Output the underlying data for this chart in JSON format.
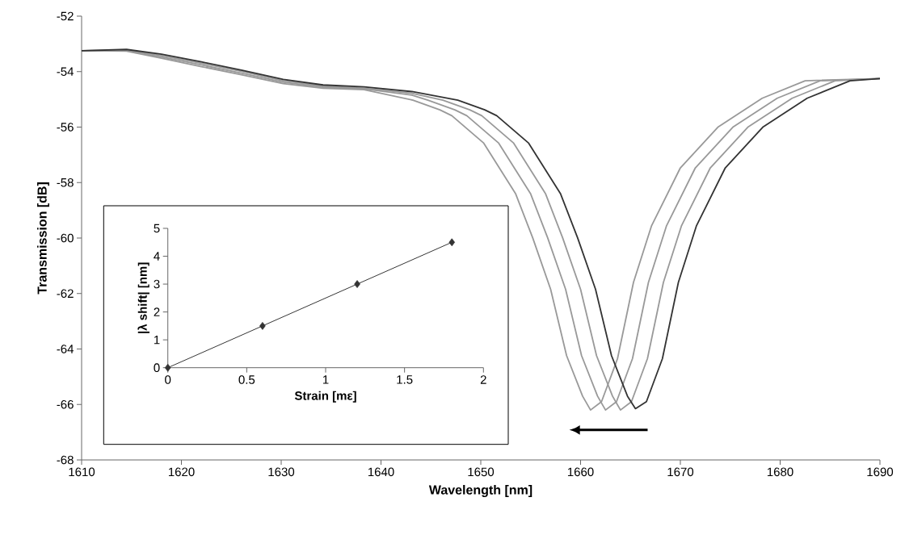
{
  "chart_data": [
    {
      "type": "line",
      "xlabel": "Wavelength [nm]",
      "ylabel": "Transmission [dB]",
      "xlim": [
        1610,
        1690
      ],
      "ylim": [
        -68,
        -52
      ],
      "xticks": [
        1610,
        1620,
        1630,
        1640,
        1650,
        1660,
        1670,
        1680,
        1690
      ],
      "yticks": [
        -68,
        -66,
        -64,
        -62,
        -60,
        -58,
        -56,
        -54,
        -52
      ],
      "series": [
        {
          "color": "#999999",
          "x": [
            1610,
            1614.5,
            1618,
            1622,
            1626.1,
            1630.2,
            1634.2,
            1638.3,
            1643.2,
            1645.9,
            1647.1,
            1650.3,
            1653.5,
            1655.2,
            1657.0,
            1658.6,
            1660.2,
            1661.0,
            1662.1,
            1663.7,
            1665.3,
            1667.1,
            1670.0,
            1673.8,
            1678.2,
            1682.5,
            1690
          ],
          "values": [
            -53.25,
            -53.26,
            -53.52,
            -53.82,
            -54.12,
            -54.43,
            -54.6,
            -54.65,
            -55.03,
            -55.38,
            -55.59,
            -56.58,
            -58.41,
            -59.99,
            -61.85,
            -64.24,
            -65.7,
            -66.2,
            -65.9,
            -64.35,
            -61.6,
            -59.57,
            -57.47,
            -55.99,
            -54.96,
            -54.33,
            -54.25
          ]
        },
        {
          "color": "#999999",
          "x": [
            1610,
            1614.5,
            1618,
            1622,
            1626.1,
            1630.2,
            1634.2,
            1638.3,
            1643.1,
            1644.7,
            1647.4,
            1648.6,
            1651.8,
            1655.0,
            1656.7,
            1658.5,
            1660.1,
            1661.7,
            1662.5,
            1663.6,
            1665.2,
            1666.8,
            1668.6,
            1671.5,
            1675.3,
            1679.7,
            1684.0,
            1690
          ],
          "values": [
            -53.25,
            -53.24,
            -53.47,
            -53.76,
            -54.06,
            -54.38,
            -54.56,
            -54.62,
            -54.85,
            -55.03,
            -55.38,
            -55.59,
            -56.58,
            -58.41,
            -59.99,
            -61.85,
            -64.24,
            -65.7,
            -66.2,
            -65.9,
            -64.35,
            -61.6,
            -59.57,
            -57.47,
            -55.99,
            -54.96,
            -54.33,
            -54.25
          ]
        },
        {
          "color": "#999999",
          "x": [
            1610,
            1614.5,
            1618,
            1622,
            1626.1,
            1630.2,
            1634.2,
            1638.3,
            1643.1,
            1646.2,
            1648.9,
            1650.1,
            1653.3,
            1656.5,
            1658.2,
            1660.0,
            1661.6,
            1663.2,
            1664.0,
            1665.1,
            1666.7,
            1668.3,
            1670.1,
            1673.0,
            1676.8,
            1681.2,
            1685.5,
            1690
          ],
          "values": [
            -53.25,
            -53.22,
            -53.42,
            -53.7,
            -54.0,
            -54.33,
            -54.52,
            -54.6,
            -54.78,
            -55.03,
            -55.38,
            -55.59,
            -56.58,
            -58.41,
            -59.99,
            -61.85,
            -64.24,
            -65.7,
            -66.2,
            -65.9,
            -64.35,
            -61.6,
            -59.57,
            -57.47,
            -55.99,
            -54.96,
            -54.33,
            -54.25
          ]
        },
        {
          "color": "#333333",
          "x": [
            1610,
            1614.5,
            1618,
            1622,
            1626.1,
            1630.2,
            1634.2,
            1638.3,
            1643.1,
            1647.7,
            1650.4,
            1651.6,
            1654.8,
            1658.0,
            1659.7,
            1661.5,
            1663.1,
            1664.7,
            1665.5,
            1666.6,
            1668.2,
            1669.8,
            1671.6,
            1674.5,
            1678.3,
            1682.7,
            1687.0,
            1690
          ],
          "values": [
            -53.25,
            -53.2,
            -53.37,
            -53.65,
            -53.95,
            -54.28,
            -54.48,
            -54.55,
            -54.72,
            -55.03,
            -55.38,
            -55.59,
            -56.58,
            -58.41,
            -59.99,
            -61.85,
            -64.24,
            -65.7,
            -66.15,
            -65.9,
            -64.35,
            -61.6,
            -59.57,
            -57.47,
            -55.99,
            -54.96,
            -54.33,
            -54.25
          ]
        }
      ]
    },
    {
      "type": "line",
      "xlabel": "Strain [mε]",
      "ylabel": "|λ shift| [nm]",
      "xlim": [
        0,
        2
      ],
      "ylim": [
        0,
        5
      ],
      "xticks": [
        0,
        0.5,
        1,
        1.5,
        2
      ],
      "yticks": [
        0,
        1,
        2,
        3,
        4,
        5
      ],
      "marker": "diamond",
      "color": "#333333",
      "x": [
        0,
        0.6,
        1.2,
        1.8
      ],
      "values": [
        0,
        1.5,
        3,
        4.5
      ]
    }
  ]
}
